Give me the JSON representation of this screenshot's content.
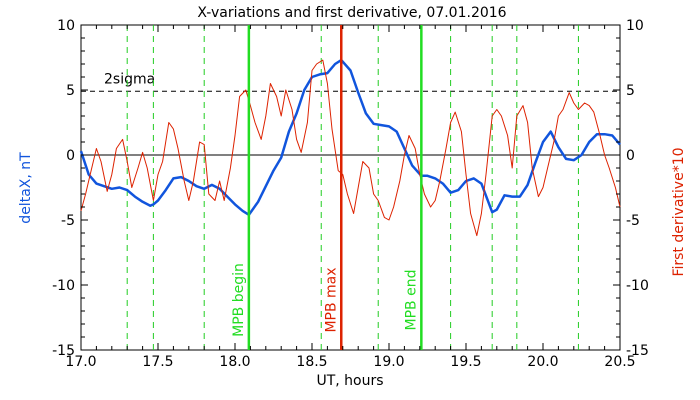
{
  "chart_data": {
    "type": "line",
    "title": "X-variations and first derivative, 07.01.2016",
    "xlabel": "UT, hours",
    "ylabel_left": "deltaX, nT",
    "ylabel_right": "First derivative*10",
    "xlim": [
      17.0,
      20.5
    ],
    "ylim": [
      -15,
      10
    ],
    "x_ticks": [
      "17.0",
      "17.5",
      "18.0",
      "18.5",
      "19.0",
      "19.5",
      "20.0",
      "20.5"
    ],
    "y_ticks_left": [
      "10",
      "5",
      "0",
      "-5",
      "-10",
      "-15"
    ],
    "y_ticks_right": [
      "10",
      "5",
      "0",
      "-5",
      "-10",
      "-15"
    ],
    "threshold": {
      "label": "2sigma",
      "value": 4.9
    },
    "zero_line": 0,
    "markers": [
      {
        "label": "MPB begin",
        "x": 18.09,
        "color": "#22dd22"
      },
      {
        "label": "MPB max",
        "x": 18.69,
        "color": "#dd2200"
      },
      {
        "label": "MPB end",
        "x": 19.21,
        "color": "#22dd22"
      }
    ],
    "dashed_verticals": [
      17.3,
      17.47,
      17.8,
      18.56,
      18.93,
      19.4,
      19.67,
      19.83,
      20.23
    ],
    "series": [
      {
        "axis": "left",
        "color": "#1155dd",
        "x": [
          17.0,
          17.05,
          17.1,
          17.15,
          17.2,
          17.25,
          17.3,
          17.35,
          17.4,
          17.45,
          17.47,
          17.5,
          17.55,
          17.6,
          17.65,
          17.7,
          17.75,
          17.8,
          17.85,
          17.9,
          17.95,
          18.0,
          18.05,
          18.09,
          18.15,
          18.2,
          18.25,
          18.3,
          18.35,
          18.4,
          18.45,
          18.5,
          18.55,
          18.6,
          18.65,
          18.69,
          18.75,
          18.8,
          18.85,
          18.9,
          18.95,
          19.0,
          19.05,
          19.1,
          19.15,
          19.21,
          19.25,
          19.3,
          19.35,
          19.4,
          19.45,
          19.5,
          19.55,
          19.6,
          19.67,
          19.7,
          19.75,
          19.8,
          19.85,
          19.9,
          19.95,
          20.0,
          20.05,
          20.1,
          20.15,
          20.2,
          20.25,
          20.3,
          20.35,
          20.4,
          20.45,
          20.5
        ],
        "y": [
          0.3,
          -1.5,
          -2.2,
          -2.4,
          -2.6,
          -2.5,
          -2.7,
          -3.2,
          -3.6,
          -3.9,
          -3.8,
          -3.5,
          -2.7,
          -1.8,
          -1.7,
          -2.0,
          -2.4,
          -2.6,
          -2.3,
          -2.6,
          -3.2,
          -3.8,
          -4.3,
          -4.6,
          -3.6,
          -2.4,
          -1.2,
          -0.2,
          1.8,
          3.2,
          5.0,
          6.0,
          6.2,
          6.3,
          7.0,
          7.3,
          6.5,
          4.8,
          3.2,
          2.4,
          2.3,
          2.2,
          1.8,
          0.5,
          -0.8,
          -1.6,
          -1.6,
          -1.8,
          -2.2,
          -2.9,
          -2.7,
          -2.0,
          -1.8,
          -2.2,
          -4.4,
          -4.2,
          -3.1,
          -3.2,
          -3.2,
          -2.3,
          -0.6,
          1.0,
          1.8,
          0.6,
          -0.3,
          -0.4,
          0.0,
          1.0,
          1.6,
          1.6,
          1.5,
          0.8
        ]
      },
      {
        "axis": "right",
        "color": "#dd2200",
        "x": [
          17.0,
          17.03,
          17.06,
          17.1,
          17.13,
          17.17,
          17.2,
          17.23,
          17.27,
          17.3,
          17.33,
          17.37,
          17.4,
          17.43,
          17.47,
          17.5,
          17.53,
          17.57,
          17.6,
          17.63,
          17.67,
          17.7,
          17.73,
          17.77,
          17.8,
          17.83,
          17.87,
          17.9,
          17.93,
          17.97,
          18.0,
          18.03,
          18.07,
          18.1,
          18.13,
          18.17,
          18.2,
          18.23,
          18.27,
          18.3,
          18.33,
          18.37,
          18.4,
          18.43,
          18.47,
          18.5,
          18.53,
          18.57,
          18.6,
          18.63,
          18.67,
          18.7,
          18.73,
          18.77,
          18.8,
          18.83,
          18.87,
          18.9,
          18.93,
          18.97,
          19.0,
          19.03,
          19.07,
          19.1,
          19.13,
          19.17,
          19.2,
          19.23,
          19.27,
          19.3,
          19.33,
          19.37,
          19.4,
          19.43,
          19.47,
          19.5,
          19.53,
          19.57,
          19.6,
          19.63,
          19.67,
          19.7,
          19.73,
          19.77,
          19.8,
          19.83,
          19.87,
          19.9,
          19.93,
          19.97,
          20.0,
          20.03,
          20.07,
          20.1,
          20.13,
          20.17,
          20.2,
          20.23,
          20.27,
          20.3,
          20.33,
          20.37,
          20.4,
          20.43,
          20.47,
          20.5
        ],
        "y": [
          -4.3,
          -3.0,
          -1.5,
          0.5,
          -0.5,
          -2.8,
          -1.5,
          0.5,
          1.2,
          -0.5,
          -2.5,
          -1.0,
          0.2,
          -1.0,
          -3.5,
          -1.5,
          -0.5,
          2.5,
          2.0,
          0.5,
          -2.0,
          -3.5,
          -2.0,
          1.0,
          0.8,
          -3.0,
          -3.5,
          -2.0,
          -3.5,
          -1.0,
          1.5,
          4.5,
          5.0,
          3.8,
          2.5,
          1.2,
          3.0,
          5.5,
          4.5,
          3.0,
          5.0,
          3.5,
          1.2,
          0.2,
          2.5,
          6.5,
          7.0,
          7.3,
          5.5,
          2.0,
          -1.2,
          -1.5,
          -3.0,
          -4.5,
          -2.5,
          -0.5,
          -1.0,
          -3.0,
          -3.5,
          -4.8,
          -5.0,
          -4.0,
          -2.0,
          0.0,
          1.5,
          0.5,
          -1.5,
          -3.0,
          -4.0,
          -3.5,
          -2.0,
          0.5,
          2.5,
          3.3,
          1.8,
          -1.5,
          -4.5,
          -6.2,
          -4.5,
          -1.5,
          3.0,
          3.5,
          3.0,
          1.5,
          -1.0,
          3.0,
          3.8,
          2.5,
          -1.0,
          -3.2,
          -2.5,
          -1.0,
          1.0,
          3.0,
          3.5,
          4.8,
          4.0,
          3.5,
          4.0,
          3.8,
          3.3,
          1.5,
          0.0,
          -1.0,
          -2.5,
          -4.0
        ]
      }
    ],
    "grid": false
  }
}
